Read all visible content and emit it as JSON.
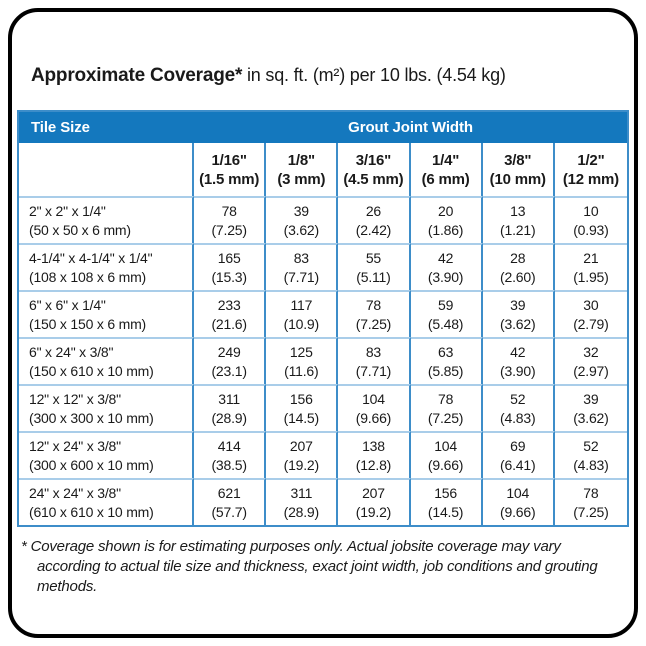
{
  "title": {
    "bold": "Approximate Coverage*",
    "regular": " in sq. ft. (m²) per 10 lbs. (4.54 kg)"
  },
  "table": {
    "header": {
      "tile_size": "Tile Size",
      "grout_joint_width": "Grout Joint Width"
    },
    "columns": [
      {
        "inch": "1/16\"",
        "mm": "(1.5 mm)"
      },
      {
        "inch": "1/8\"",
        "mm": "(3 mm)"
      },
      {
        "inch": "3/16\"",
        "mm": "(4.5 mm)"
      },
      {
        "inch": "1/4\"",
        "mm": "(6 mm)"
      },
      {
        "inch": "3/8\"",
        "mm": "(10 mm)"
      },
      {
        "inch": "1/2\"",
        "mm": "(12 mm)"
      }
    ],
    "rows": [
      {
        "size": "2\" x 2\" x 1/4\"",
        "size_mm": "(50 x 50 x 6 mm)",
        "values": [
          [
            "78",
            "(7.25)"
          ],
          [
            "39",
            "(3.62)"
          ],
          [
            "26",
            "(2.42)"
          ],
          [
            "20",
            "(1.86)"
          ],
          [
            "13",
            "(1.21)"
          ],
          [
            "10",
            "(0.93)"
          ]
        ]
      },
      {
        "size": "4-1/4\" x 4-1/4\" x 1/4\"",
        "size_mm": "(108 x 108 x 6 mm)",
        "values": [
          [
            "165",
            "(15.3)"
          ],
          [
            "83",
            "(7.71)"
          ],
          [
            "55",
            "(5.11)"
          ],
          [
            "42",
            "(3.90)"
          ],
          [
            "28",
            "(2.60)"
          ],
          [
            "21",
            "(1.95)"
          ]
        ]
      },
      {
        "size": "6\" x 6\" x 1/4\"",
        "size_mm": "(150 x 150 x 6 mm)",
        "values": [
          [
            "233",
            "(21.6)"
          ],
          [
            "117",
            "(10.9)"
          ],
          [
            "78",
            "(7.25)"
          ],
          [
            "59",
            "(5.48)"
          ],
          [
            "39",
            "(3.62)"
          ],
          [
            "30",
            "(2.79)"
          ]
        ]
      },
      {
        "size": "6\" x 24\" x 3/8\"",
        "size_mm": "(150 x 610 x 10 mm)",
        "values": [
          [
            "249",
            "(23.1)"
          ],
          [
            "125",
            "(11.6)"
          ],
          [
            "83",
            "(7.71)"
          ],
          [
            "63",
            "(5.85)"
          ],
          [
            "42",
            "(3.90)"
          ],
          [
            "32",
            "(2.97)"
          ]
        ]
      },
      {
        "size": "12\" x 12\" x 3/8\"",
        "size_mm": "(300 x 300 x 10 mm)",
        "values": [
          [
            "311",
            "(28.9)"
          ],
          [
            "156",
            "(14.5)"
          ],
          [
            "104",
            "(9.66)"
          ],
          [
            "78",
            "(7.25)"
          ],
          [
            "52",
            "(4.83)"
          ],
          [
            "39",
            "(3.62)"
          ]
        ]
      },
      {
        "size": "12\" x 24\" x 3/8\"",
        "size_mm": "(300 x 600 x 10 mm)",
        "values": [
          [
            "414",
            "(38.5)"
          ],
          [
            "207",
            "(19.2)"
          ],
          [
            "138",
            "(12.8)"
          ],
          [
            "104",
            "(9.66)"
          ],
          [
            "69",
            "(6.41)"
          ],
          [
            "52",
            "(4.83)"
          ]
        ]
      },
      {
        "size": "24\" x 24\" x 3/8\"",
        "size_mm": "(610 x 610 x 10 mm)",
        "values": [
          [
            "621",
            "(57.7)"
          ],
          [
            "311",
            "(28.9)"
          ],
          [
            "207",
            "(19.2)"
          ],
          [
            "156",
            "(14.5)"
          ],
          [
            "104",
            "(9.66)"
          ],
          [
            "78",
            "(7.25)"
          ]
        ]
      }
    ]
  },
  "footnote": "* Coverage shown is for estimating purposes only. Actual jobsite coverage may vary according to actual tile size and thickness, exact joint width, job conditions and grouting methods.",
  "colors": {
    "header_blue": "#1478BE",
    "grid_vertical_blue": "#3D8DC9",
    "grid_horizontal_blue": "#A9CDE9",
    "card_border_black": "#000000"
  }
}
